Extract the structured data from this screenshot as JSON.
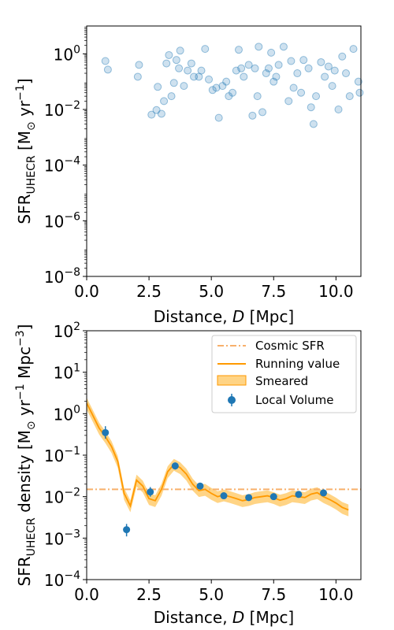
{
  "chart_data": [
    {
      "type": "scatter",
      "xlabel": "Distance, D  [Mpc]",
      "ylabel": "SFR_UHECR [M_sun yr^-1]",
      "xlim": [
        0,
        11
      ],
      "ylim": [
        1e-08,
        10
      ],
      "yscale": "log",
      "x_ticks": [
        0.0,
        2.5,
        5.0,
        7.5,
        10.0
      ],
      "x_tick_labels": [
        "0.0",
        "2.5",
        "5.0",
        "7.5",
        "10.0"
      ],
      "y_tick_exponents": [
        -8,
        -6,
        -4,
        -2,
        0
      ],
      "color": "#1f77b4",
      "points": [
        [
          0.75,
          0.55
        ],
        [
          0.85,
          0.27
        ],
        [
          2.1,
          0.4
        ],
        [
          2.05,
          0.15
        ],
        [
          2.6,
          0.0065
        ],
        [
          2.8,
          0.0095
        ],
        [
          2.85,
          0.065
        ],
        [
          3.0,
          0.007
        ],
        [
          3.1,
          0.02
        ],
        [
          3.2,
          0.45
        ],
        [
          3.3,
          0.9
        ],
        [
          3.4,
          0.03
        ],
        [
          3.5,
          0.09
        ],
        [
          3.6,
          0.6
        ],
        [
          3.7,
          0.3
        ],
        [
          3.75,
          1.3
        ],
        [
          3.9,
          0.07
        ],
        [
          4.05,
          0.25
        ],
        [
          4.2,
          0.45
        ],
        [
          4.3,
          0.15
        ],
        [
          4.5,
          0.15
        ],
        [
          4.6,
          0.25
        ],
        [
          4.75,
          1.5
        ],
        [
          4.9,
          0.12
        ],
        [
          5.05,
          0.05
        ],
        [
          5.2,
          0.06
        ],
        [
          5.3,
          0.005
        ],
        [
          5.45,
          0.07
        ],
        [
          5.6,
          0.1
        ],
        [
          5.7,
          0.03
        ],
        [
          5.85,
          0.04
        ],
        [
          6.0,
          0.25
        ],
        [
          6.1,
          1.4
        ],
        [
          6.2,
          0.3
        ],
        [
          6.3,
          0.15
        ],
        [
          6.5,
          0.4
        ],
        [
          6.65,
          0.006
        ],
        [
          6.75,
          0.3
        ],
        [
          6.85,
          0.03
        ],
        [
          6.9,
          1.8
        ],
        [
          7.05,
          0.008
        ],
        [
          7.2,
          0.2
        ],
        [
          7.3,
          0.3
        ],
        [
          7.4,
          1.1
        ],
        [
          7.5,
          0.1
        ],
        [
          7.6,
          0.15
        ],
        [
          7.7,
          0.4
        ],
        [
          7.9,
          1.8
        ],
        [
          8.1,
          0.02
        ],
        [
          8.2,
          0.55
        ],
        [
          8.3,
          0.06
        ],
        [
          8.45,
          0.2
        ],
        [
          8.6,
          0.04
        ],
        [
          8.7,
          0.6
        ],
        [
          8.9,
          0.3
        ],
        [
          9.0,
          0.012
        ],
        [
          9.1,
          0.003
        ],
        [
          9.2,
          0.03
        ],
        [
          9.4,
          0.5
        ],
        [
          9.55,
          0.15
        ],
        [
          9.7,
          0.35
        ],
        [
          9.85,
          0.07
        ],
        [
          9.95,
          0.25
        ],
        [
          10.1,
          0.01
        ],
        [
          10.25,
          0.8
        ],
        [
          10.4,
          0.2
        ],
        [
          10.55,
          0.03
        ],
        [
          10.7,
          1.5
        ],
        [
          10.9,
          0.1
        ],
        [
          10.95,
          0.04
        ]
      ]
    },
    {
      "type": "line",
      "xlabel": "Distance, D  [Mpc]",
      "ylabel": "SFR_UHECR density [M_sun yr^-1 Mpc^-3]",
      "xlim": [
        0,
        11
      ],
      "ylim": [
        0.0001,
        100
      ],
      "yscale": "log",
      "x_ticks": [
        0.0,
        2.5,
        5.0,
        7.5,
        10.0
      ],
      "x_tick_labels": [
        "0.0",
        "2.5",
        "5.0",
        "7.5",
        "10.0"
      ],
      "y_tick_exponents": [
        -4,
        -3,
        -2,
        -1,
        0,
        1,
        2
      ],
      "legend_position": "top-right",
      "series": [
        {
          "name": "Cosmic SFR",
          "style": "dash-dot",
          "color": "#f7b06b",
          "y": 0.015
        },
        {
          "name": "Running value",
          "style": "line",
          "color": "#ff9900",
          "x": [
            0.0,
            0.25,
            0.5,
            0.75,
            1.0,
            1.25,
            1.5,
            1.75,
            2.0,
            2.25,
            2.5,
            2.75,
            3.0,
            3.25,
            3.5,
            3.75,
            4.0,
            4.25,
            4.5,
            4.75,
            5.0,
            5.25,
            5.5,
            5.75,
            6.0,
            6.25,
            6.5,
            6.75,
            7.0,
            7.25,
            7.5,
            7.75,
            8.0,
            8.25,
            8.5,
            8.75,
            9.0,
            9.25,
            9.5,
            9.75,
            10.0,
            10.25,
            10.5
          ],
          "y": [
            1.8,
            0.9,
            0.45,
            0.28,
            0.16,
            0.07,
            0.012,
            0.006,
            0.025,
            0.018,
            0.009,
            0.008,
            0.015,
            0.04,
            0.06,
            0.05,
            0.035,
            0.02,
            0.014,
            0.015,
            0.012,
            0.01,
            0.011,
            0.01,
            0.009,
            0.008,
            0.0085,
            0.0095,
            0.01,
            0.0105,
            0.0095,
            0.0082,
            0.009,
            0.0105,
            0.01,
            0.0095,
            0.0115,
            0.0125,
            0.01,
            0.0085,
            0.007,
            0.0055,
            0.0048
          ]
        },
        {
          "name": "Smeared",
          "style": "band",
          "color": "#ffb733",
          "lower_factor": 0.7,
          "upper_factor": 1.35
        },
        {
          "name": "Local Volume",
          "style": "errorbar",
          "color": "#1f77b4",
          "points": [
            {
              "x": 0.75,
              "y": 0.35,
              "err_low": 0.25,
              "err_high": 0.5
            },
            {
              "x": 1.6,
              "y": 0.0016,
              "err_low": 0.0011,
              "err_high": 0.0022
            },
            {
              "x": 2.55,
              "y": 0.013,
              "err_low": 0.01,
              "err_high": 0.017
            },
            {
              "x": 3.55,
              "y": 0.055,
              "err_low": 0.045,
              "err_high": 0.065
            },
            {
              "x": 4.55,
              "y": 0.018,
              "err_low": 0.015,
              "err_high": 0.021
            },
            {
              "x": 5.5,
              "y": 0.0105,
              "err_low": 0.0092,
              "err_high": 0.0118
            },
            {
              "x": 6.5,
              "y": 0.0095,
              "err_low": 0.0085,
              "err_high": 0.0106
            },
            {
              "x": 7.5,
              "y": 0.01,
              "err_low": 0.009,
              "err_high": 0.011
            },
            {
              "x": 8.5,
              "y": 0.0113,
              "err_low": 0.0102,
              "err_high": 0.0124
            },
            {
              "x": 9.5,
              "y": 0.0123,
              "err_low": 0.011,
              "err_high": 0.0136
            }
          ]
        }
      ]
    }
  ]
}
